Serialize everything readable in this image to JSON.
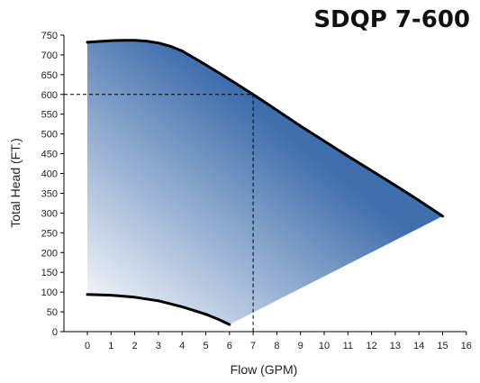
{
  "chart_data": {
    "type": "area",
    "title": "SDQP 7-600",
    "xlabel": "Flow (GPM)",
    "ylabel": "Total Head (FT.)",
    "xlim": [
      0,
      16
    ],
    "ylim": [
      0,
      750
    ],
    "x_ticks": [
      0,
      1,
      2,
      3,
      4,
      5,
      6,
      7,
      8,
      9,
      10,
      11,
      12,
      13,
      14,
      15,
      16
    ],
    "y_ticks": [
      0,
      50,
      100,
      150,
      200,
      250,
      300,
      350,
      400,
      450,
      500,
      550,
      600,
      650,
      700,
      750
    ],
    "grid": false,
    "series": [
      {
        "role": "upper-curve",
        "x": [
          0,
          0.5,
          1,
          1.5,
          2,
          2.5,
          3,
          3.5,
          4,
          5,
          6,
          7,
          8,
          9,
          10,
          11,
          12,
          13,
          14,
          15
        ],
        "y": [
          732,
          734,
          736,
          737,
          737,
          735,
          730,
          722,
          710,
          675,
          638,
          600,
          560,
          520,
          482,
          444,
          407,
          370,
          332,
          292
        ]
      },
      {
        "role": "lower-curve",
        "x": [
          0,
          1,
          2,
          3,
          4,
          5,
          5.5,
          6
        ],
        "y": [
          94,
          92,
          87,
          78,
          63,
          44,
          32,
          18
        ]
      }
    ],
    "operating_point": {
      "x": 7,
      "y": 600
    },
    "colors": {
      "fill_dark": "#3e6eac",
      "fill_light": "#ffffff",
      "curve": "#000000",
      "axis": "#000000"
    }
  }
}
